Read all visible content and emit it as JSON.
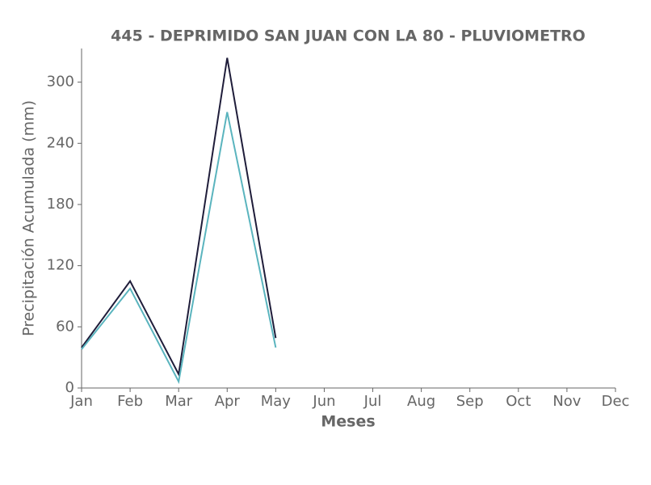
{
  "chart_data": {
    "type": "line",
    "title": "445 - DEPRIMIDO SAN JUAN CON LA 80 - PLUVIOMETRO",
    "x_label": "Meses",
    "y_label": "Precipitación Acumulada (mm)",
    "categories": [
      "Jan",
      "Feb",
      "Mar",
      "Apr",
      "May",
      "Jun",
      "Jul",
      "Aug",
      "Sep",
      "Oct",
      "Nov",
      "Dec"
    ],
    "series": [
      {
        "color": "#1f1d3a",
        "values": [
          39.7,
          104.8,
          13.5,
          323.8,
          49,
          null,
          null,
          null,
          null,
          null,
          null,
          null
        ]
      },
      {
        "color": "#5ab4be",
        "values": [
          38,
          97.6,
          6.3,
          270.6,
          39.7,
          null,
          null,
          null,
          null,
          null,
          null,
          null
        ]
      }
    ],
    "ylim": [
      0,
      333
    ],
    "yticks": [
      0,
      60,
      120,
      180,
      240,
      300
    ],
    "grid": false
  }
}
